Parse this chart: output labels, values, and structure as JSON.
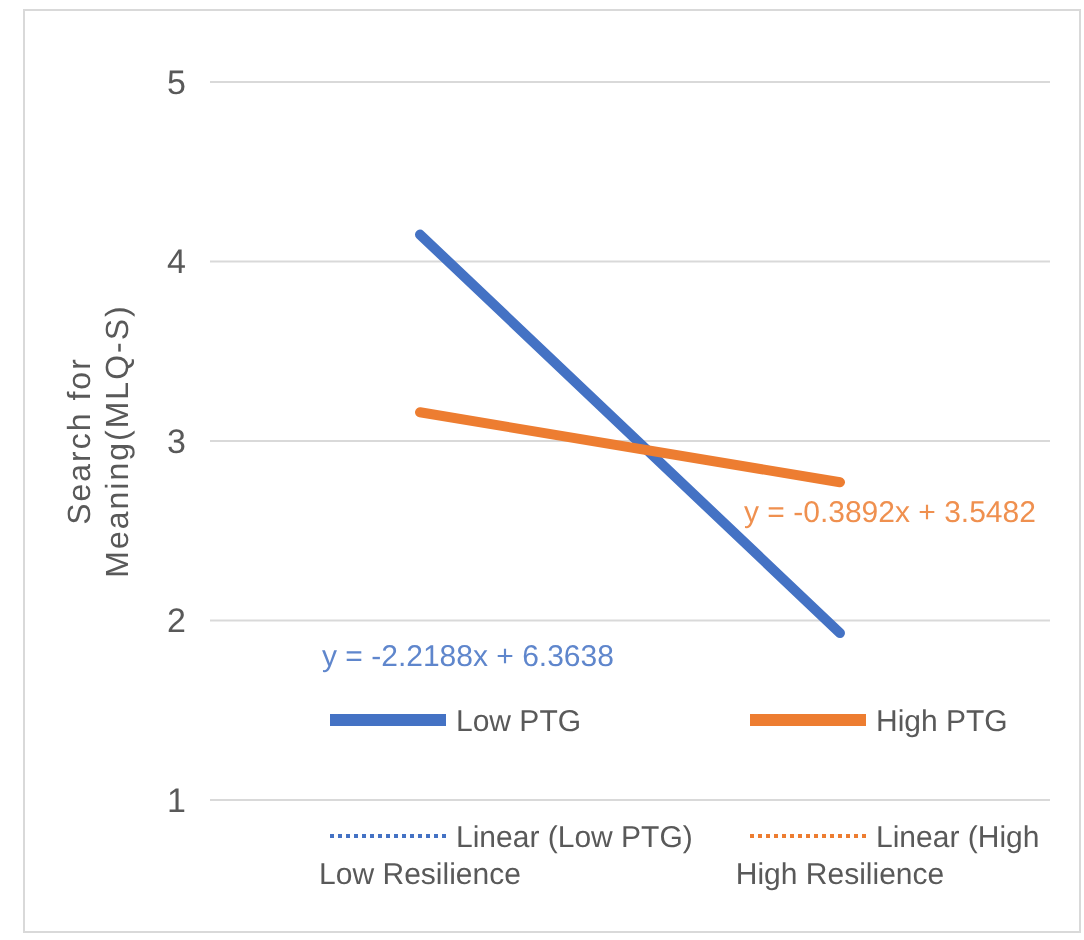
{
  "chart_data": {
    "type": "line",
    "ylabel": "Search for Meaning(MLQ-S)",
    "categories": [
      "Low Resilience",
      "High Resilience"
    ],
    "series": [
      {
        "name": "Low PTG",
        "color": "#4472c4",
        "values": [
          4.15,
          1.93
        ]
      },
      {
        "name": "High PTG",
        "color": "#ed7d31",
        "values": [
          3.16,
          2.77
        ]
      },
      {
        "name": "Linear (Low PTG)",
        "color": "#4472c4",
        "values": [
          null,
          null
        ],
        "line_style": "dotted"
      },
      {
        "name": "Linear (High",
        "color": "#ed7d31",
        "values": [
          null,
          null
        ],
        "line_style": "dotted"
      }
    ],
    "ylim": [
      1,
      5
    ],
    "yticks": [
      1,
      2,
      3,
      4,
      5
    ],
    "grid": "y",
    "legend": "bottom",
    "marker": "none",
    "line_style": "solid",
    "annotations": [
      "y = -2.2188x + 6.3638",
      "y = -0.3892x + 3.5482"
    ]
  }
}
